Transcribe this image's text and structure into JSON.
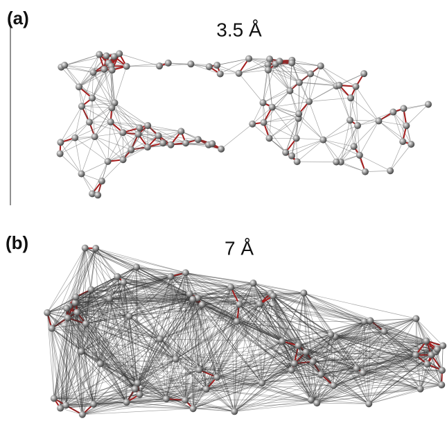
{
  "panels": [
    {
      "label": "(a)",
      "title": "3.5 Å"
    },
    {
      "label": "(b)",
      "title": "7 Å"
    }
  ]
}
